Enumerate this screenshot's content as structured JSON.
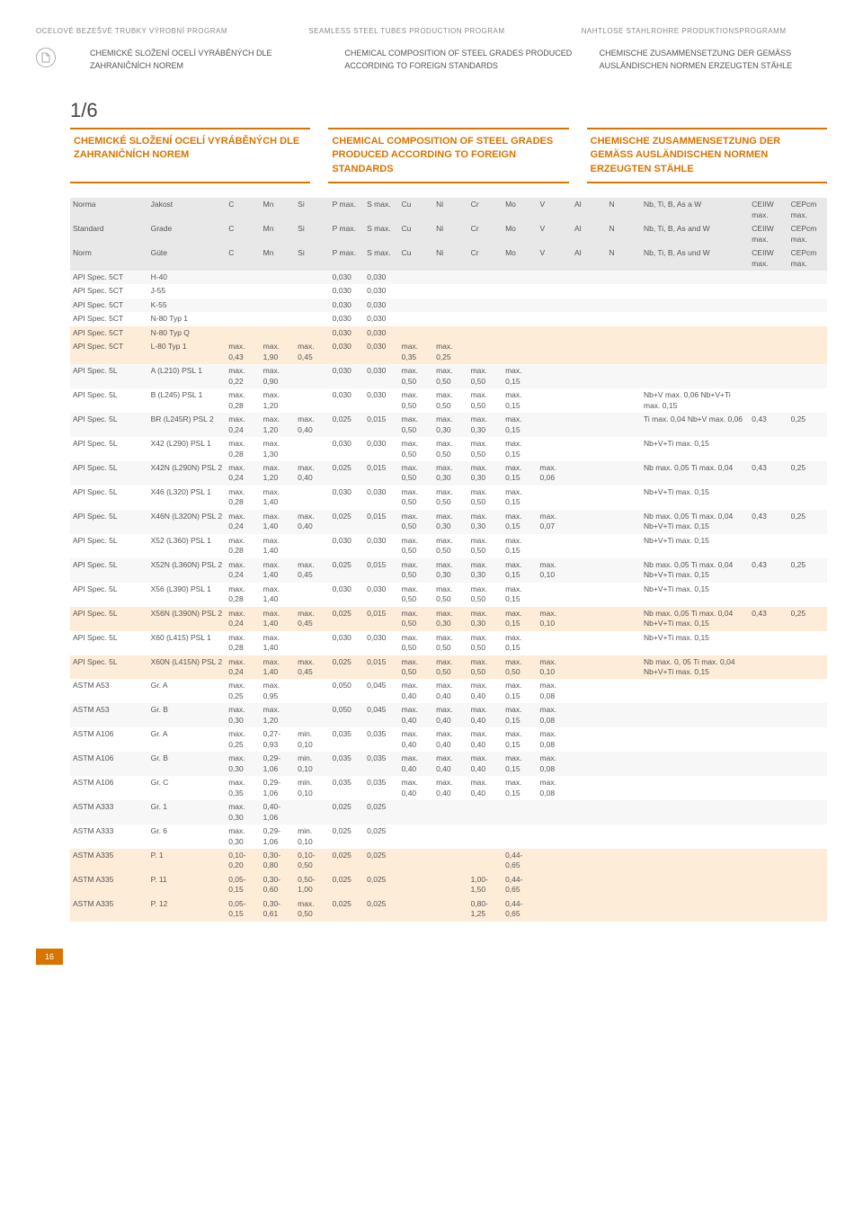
{
  "top_headers": {
    "cz": "OCELOVÉ BEZEŠVÉ TRUBKY VÝROBNÍ PROGRAM",
    "en": "SEAMLESS STEEL TUBES PRODUCTION PROGRAM",
    "de": "NAHTLOSE STAHLROHRE PRODUKTIONSPROGRAMM"
  },
  "sub_headers": {
    "cz": "CHEMICKÉ SLOŽENÍ OCELÍ VYRÁBĚNÝCH DLE ZAHRANIČNÍCH NOREM",
    "en": "CHEMICAL COMPOSITION OF STEEL GRADES PRODUCED ACCORDING TO FOREIGN STANDARDS",
    "de": "CHEMISCHE ZUSAMMENSETZUNG DER GEMÄSS AUSLÄNDISCHEN NORMEN ERZEUGTEN STÄHLE"
  },
  "page_indicator": "1/6",
  "titles": {
    "cz": "CHEMICKÉ SLOŽENÍ OCELÍ VYRÁBĚNÝCH DLE ZAHRANIČNÍCH NOREM",
    "en": "CHEMICAL COMPOSITION OF STEEL GRADES PRODUCED ACCORDING TO FOREIGN STANDARDS",
    "de": "CHEMISCHE ZUSAMMENSETZUNG DER GEMÄSS AUSLÄNDISCHEN NORMEN ERZEUGTEN STÄHLE"
  },
  "header_rows": [
    {
      "norma": "Norma",
      "jakost": "Jakost",
      "c": "C",
      "mn": "Mn",
      "si": "Si",
      "p": "P max.",
      "s": "S max.",
      "cu": "Cu",
      "ni": "Ni",
      "cr": "Cr",
      "mo": "Mo",
      "v": "V",
      "al": "Al",
      "n": "N",
      "nb": "Nb, Ti, B, As a W",
      "ceiiw": "CEIIW max.",
      "cepcm": "CEPcm max."
    },
    {
      "norma": "Standard",
      "jakost": "Grade",
      "c": "C",
      "mn": "Mn",
      "si": "Si",
      "p": "P max.",
      "s": "S max.",
      "cu": "Cu",
      "ni": "Ni",
      "cr": "Cr",
      "mo": "Mo",
      "v": "V",
      "al": "Al",
      "n": "N",
      "nb": "Nb, Ti, B, As and W",
      "ceiiw": "CEIIW max.",
      "cepcm": "CEPcm max."
    },
    {
      "norma": "Norm",
      "jakost": "Güte",
      "c": "C",
      "mn": "Mn",
      "si": "Si",
      "p": "P max.",
      "s": "S max.",
      "cu": "Cu",
      "ni": "Ni",
      "cr": "Cr",
      "mo": "Mo",
      "v": "V",
      "al": "Al",
      "n": "N",
      "nb": "Nb, Ti, B, As und W",
      "ceiiw": "CEIIW max.",
      "cepcm": "CEPcm max."
    }
  ],
  "rows": [
    {
      "cls": "r-odd",
      "norma": "API Spec. 5CT",
      "jakost": "H-40",
      "c": "",
      "mn": "",
      "si": "",
      "p": "0,030",
      "s": "0,030",
      "cu": "",
      "ni": "",
      "cr": "",
      "mo": "",
      "v": "",
      "al": "",
      "n": "",
      "nb": "",
      "ceiiw": "",
      "cepcm": ""
    },
    {
      "cls": "r-even",
      "norma": "API Spec. 5CT",
      "jakost": "J-55",
      "c": "",
      "mn": "",
      "si": "",
      "p": "0,030",
      "s": "0,030",
      "cu": "",
      "ni": "",
      "cr": "",
      "mo": "",
      "v": "",
      "al": "",
      "n": "",
      "nb": "",
      "ceiiw": "",
      "cepcm": ""
    },
    {
      "cls": "r-odd",
      "norma": "API Spec. 5CT",
      "jakost": "K-55",
      "c": "",
      "mn": "",
      "si": "",
      "p": "0,030",
      "s": "0,030",
      "cu": "",
      "ni": "",
      "cr": "",
      "mo": "",
      "v": "",
      "al": "",
      "n": "",
      "nb": "",
      "ceiiw": "",
      "cepcm": ""
    },
    {
      "cls": "r-even",
      "norma": "API Spec. 5CT",
      "jakost": "N-80 Typ 1",
      "c": "",
      "mn": "",
      "si": "",
      "p": "0,030",
      "s": "0,030",
      "cu": "",
      "ni": "",
      "cr": "",
      "mo": "",
      "v": "",
      "al": "",
      "n": "",
      "nb": "",
      "ceiiw": "",
      "cepcm": ""
    },
    {
      "cls": "r-hl",
      "norma": "API Spec. 5CT",
      "jakost": "N-80 Typ Q",
      "c": "",
      "mn": "",
      "si": "",
      "p": "0,030",
      "s": "0,030",
      "cu": "",
      "ni": "",
      "cr": "",
      "mo": "",
      "v": "",
      "al": "",
      "n": "",
      "nb": "",
      "ceiiw": "",
      "cepcm": ""
    },
    {
      "cls": "r-hl",
      "norma": "API Spec. 5CT",
      "jakost": "L-80 Typ 1",
      "c": "max. 0,43",
      "mn": "max. 1,90",
      "si": "max. 0,45",
      "p": "0,030",
      "s": "0,030",
      "cu": "max. 0,35",
      "ni": "max. 0,25",
      "cr": "",
      "mo": "",
      "v": "",
      "al": "",
      "n": "",
      "nb": "",
      "ceiiw": "",
      "cepcm": ""
    },
    {
      "cls": "r-odd",
      "norma": "API Spec. 5L",
      "jakost": "A (L210) PSL 1",
      "c": "max. 0,22",
      "mn": "max. 0,90",
      "si": "",
      "p": "0,030",
      "s": "0,030",
      "cu": "max. 0,50",
      "ni": "max. 0,50",
      "cr": "max. 0,50",
      "mo": "max. 0,15",
      "v": "",
      "al": "",
      "n": "",
      "nb": "",
      "ceiiw": "",
      "cepcm": ""
    },
    {
      "cls": "r-even",
      "norma": "API Spec. 5L",
      "jakost": "B (L245) PSL 1",
      "c": "max. 0,28",
      "mn": "max. 1,20",
      "si": "",
      "p": "0,030",
      "s": "0,030",
      "cu": "max. 0,50",
      "ni": "max. 0,50",
      "cr": "max. 0,50",
      "mo": "max. 0,15",
      "v": "",
      "al": "",
      "n": "",
      "nb": "Nb+V max. 0,06 Nb+V+Ti max. 0,15",
      "ceiiw": "",
      "cepcm": ""
    },
    {
      "cls": "r-odd",
      "norma": "API Spec. 5L",
      "jakost": "BR (L245R) PSL 2",
      "c": "max. 0,24",
      "mn": "max. 1,20",
      "si": "max. 0,40",
      "p": "0,025",
      "s": "0,015",
      "cu": "max. 0,50",
      "ni": "max. 0,30",
      "cr": "max. 0,30",
      "mo": "max. 0,15",
      "v": "",
      "al": "",
      "n": "",
      "nb": "Ti max. 0,04 Nb+V max. 0,06",
      "ceiiw": "0,43",
      "cepcm": "0,25"
    },
    {
      "cls": "r-even",
      "norma": "API Spec. 5L",
      "jakost": "X42 (L290) PSL 1",
      "c": "max. 0,28",
      "mn": "max. 1,30",
      "si": "",
      "p": "0,030",
      "s": "0,030",
      "cu": "max. 0,50",
      "ni": "max. 0,50",
      "cr": "max. 0,50",
      "mo": "max. 0,15",
      "v": "",
      "al": "",
      "n": "",
      "nb": "Nb+V+Ti max. 0,15",
      "ceiiw": "",
      "cepcm": ""
    },
    {
      "cls": "r-odd",
      "norma": "API Spec. 5L",
      "jakost": "X42N (L290N) PSL 2",
      "c": "max. 0,24",
      "mn": "max. 1,20",
      "si": "max. 0,40",
      "p": "0,025",
      "s": "0,015",
      "cu": "max. 0,50",
      "ni": "max. 0,30",
      "cr": "max. 0,30",
      "mo": "max. 0,15",
      "v": "max. 0,06",
      "al": "",
      "n": "",
      "nb": "Nb max. 0,05 Ti max. 0,04",
      "ceiiw": "0,43",
      "cepcm": "0,25"
    },
    {
      "cls": "r-even",
      "norma": "API Spec. 5L",
      "jakost": "X46 (L320) PSL 1",
      "c": "max. 0,28",
      "mn": "max. 1,40",
      "si": "",
      "p": "0,030",
      "s": "0,030",
      "cu": "max. 0,50",
      "ni": "max. 0,50",
      "cr": "max. 0,50",
      "mo": "max. 0,15",
      "v": "",
      "al": "",
      "n": "",
      "nb": "Nb+V+Ti max. 0,15",
      "ceiiw": "",
      "cepcm": ""
    },
    {
      "cls": "r-odd",
      "norma": "API Spec. 5L",
      "jakost": "X46N (L320N) PSL 2",
      "c": "max. 0,24",
      "mn": "max. 1,40",
      "si": "max. 0,40",
      "p": "0,025",
      "s": "0,015",
      "cu": "max. 0,50",
      "ni": "max. 0,30",
      "cr": "max. 0,30",
      "mo": "max. 0,15",
      "v": "max. 0,07",
      "al": "",
      "n": "",
      "nb": "Nb max. 0,05 Ti max. 0,04 Nb+V+Ti max. 0,15",
      "ceiiw": "0,43",
      "cepcm": "0,25"
    },
    {
      "cls": "r-even",
      "norma": "API Spec. 5L",
      "jakost": "X52 (L360) PSL 1",
      "c": "max. 0,28",
      "mn": "max. 1,40",
      "si": "",
      "p": "0,030",
      "s": "0,030",
      "cu": "max. 0,50",
      "ni": "max. 0,50",
      "cr": "max. 0,50",
      "mo": "max. 0,15",
      "v": "",
      "al": "",
      "n": "",
      "nb": "Nb+V+Ti max. 0,15",
      "ceiiw": "",
      "cepcm": ""
    },
    {
      "cls": "r-odd",
      "norma": "API Spec. 5L",
      "jakost": "X52N (L360N) PSL 2",
      "c": "max. 0,24",
      "mn": "max. 1,40",
      "si": "max. 0,45",
      "p": "0,025",
      "s": "0,015",
      "cu": "max. 0,50",
      "ni": "max. 0,30",
      "cr": "max. 0,30",
      "mo": "max. 0,15",
      "v": "max. 0,10",
      "al": "",
      "n": "",
      "nb": "Nb max. 0,05 Ti max. 0,04 Nb+V+Ti max. 0,15",
      "ceiiw": "0,43",
      "cepcm": "0,25"
    },
    {
      "cls": "r-even",
      "norma": "API Spec. 5L",
      "jakost": "X56 (L390) PSL 1",
      "c": "max. 0,28",
      "mn": "max. 1,40",
      "si": "",
      "p": "0,030",
      "s": "0,030",
      "cu": "max. 0,50",
      "ni": "max. 0,50",
      "cr": "max. 0,50",
      "mo": "max. 0,15",
      "v": "",
      "al": "",
      "n": "",
      "nb": "Nb+V+Ti max. 0,15",
      "ceiiw": "",
      "cepcm": ""
    },
    {
      "cls": "r-hl",
      "norma": "API Spec. 5L",
      "jakost": "X56N (L390N) PSL 2",
      "c": "max. 0,24",
      "mn": "max. 1,40",
      "si": "max. 0,45",
      "p": "0,025",
      "s": "0,015",
      "cu": "max. 0,50",
      "ni": "max. 0,30",
      "cr": "max. 0,30",
      "mo": "max. 0,15",
      "v": "max. 0,10",
      "al": "",
      "n": "",
      "nb": "Nb max. 0,05 Ti max. 0,04 Nb+V+Ti max. 0,15",
      "ceiiw": "0,43",
      "cepcm": "0,25"
    },
    {
      "cls": "r-even",
      "norma": "API Spec. 5L",
      "jakost": "X60 (L415) PSL 1",
      "c": "max. 0,28",
      "mn": "max. 1,40",
      "si": "",
      "p": "0,030",
      "s": "0,030",
      "cu": "max. 0,50",
      "ni": "max. 0,50",
      "cr": "max. 0,50",
      "mo": "max. 0,15",
      "v": "",
      "al": "",
      "n": "",
      "nb": "Nb+V+Ti max. 0,15",
      "ceiiw": "",
      "cepcm": ""
    },
    {
      "cls": "r-hl",
      "norma": "API Spec. 5L",
      "jakost": "X60N (L415N) PSL 2",
      "c": "max. 0,24",
      "mn": "max. 1,40",
      "si": "max. 0,45",
      "p": "0,025",
      "s": "0,015",
      "cu": "max. 0,50",
      "ni": "max. 0,50",
      "cr": "max. 0,50",
      "mo": "max. 0,50",
      "v": "max. 0,10",
      "al": "",
      "n": "",
      "nb": "Nb max. 0, 05 Ti max. 0,04 Nb+V+Ti max. 0,15",
      "ceiiw": "",
      "cepcm": ""
    },
    {
      "cls": "r-even",
      "norma": "ASTM A53",
      "jakost": "Gr. A",
      "c": "max. 0,25",
      "mn": "max. 0,95",
      "si": "",
      "p": "0,050",
      "s": "0,045",
      "cu": "max. 0,40",
      "ni": "max. 0,40",
      "cr": "max. 0,40",
      "mo": "max. 0,15",
      "v": "max. 0,08",
      "al": "",
      "n": "",
      "nb": "",
      "ceiiw": "",
      "cepcm": ""
    },
    {
      "cls": "r-odd",
      "norma": "ASTM A53",
      "jakost": "Gr. B",
      "c": "max. 0,30",
      "mn": "max. 1,20",
      "si": "",
      "p": "0,050",
      "s": "0,045",
      "cu": "max. 0,40",
      "ni": "max. 0,40",
      "cr": "max. 0,40",
      "mo": "max. 0,15",
      "v": "max. 0,08",
      "al": "",
      "n": "",
      "nb": "",
      "ceiiw": "",
      "cepcm": ""
    },
    {
      "cls": "r-even",
      "norma": "ASTM A106",
      "jakost": "Gr. A",
      "c": "max. 0,25",
      "mn": "0,27- 0,93",
      "si": "min. 0,10",
      "p": "0,035",
      "s": "0,035",
      "cu": "max. 0,40",
      "ni": "max. 0,40",
      "cr": "max. 0,40",
      "mo": "max. 0,15",
      "v": "max. 0,08",
      "al": "",
      "n": "",
      "nb": "",
      "ceiiw": "",
      "cepcm": ""
    },
    {
      "cls": "r-odd",
      "norma": "ASTM A106",
      "jakost": "Gr. B",
      "c": "max. 0,30",
      "mn": "0,29- 1,06",
      "si": "min. 0,10",
      "p": "0,035",
      "s": "0,035",
      "cu": "max. 0,40",
      "ni": "max. 0,40",
      "cr": "max. 0,40",
      "mo": "max. 0,15",
      "v": "max. 0,08",
      "al": "",
      "n": "",
      "nb": "",
      "ceiiw": "",
      "cepcm": ""
    },
    {
      "cls": "r-even",
      "norma": "ASTM A106",
      "jakost": "Gr. C",
      "c": "max. 0,35",
      "mn": "0,29- 1,06",
      "si": "min. 0,10",
      "p": "0,035",
      "s": "0,035",
      "cu": "max. 0,40",
      "ni": "max. 0,40",
      "cr": "max. 0,40",
      "mo": "max. 0,15",
      "v": "max. 0,08",
      "al": "",
      "n": "",
      "nb": "",
      "ceiiw": "",
      "cepcm": ""
    },
    {
      "cls": "r-odd",
      "norma": "ASTM A333",
      "jakost": "Gr. 1",
      "c": "max. 0,30",
      "mn": "0,40- 1,06",
      "si": "",
      "p": "0,025",
      "s": "0,025",
      "cu": "",
      "ni": "",
      "cr": "",
      "mo": "",
      "v": "",
      "al": "",
      "n": "",
      "nb": "",
      "ceiiw": "",
      "cepcm": ""
    },
    {
      "cls": "r-even",
      "norma": "ASTM A333",
      "jakost": "Gr. 6",
      "c": "max. 0,30",
      "mn": "0,29- 1,06",
      "si": "min. 0,10",
      "p": "0,025",
      "s": "0,025",
      "cu": "",
      "ni": "",
      "cr": "",
      "mo": "",
      "v": "",
      "al": "",
      "n": "",
      "nb": "",
      "ceiiw": "",
      "cepcm": ""
    },
    {
      "cls": "r-hl",
      "norma": "ASTM A335",
      "jakost": "P. 1",
      "c": "0,10- 0,20",
      "mn": "0,30- 0,80",
      "si": "0,10- 0,50",
      "p": "0,025",
      "s": "0,025",
      "cu": "",
      "ni": "",
      "cr": "",
      "mo": "0,44- 0,65",
      "v": "",
      "al": "",
      "n": "",
      "nb": "",
      "ceiiw": "",
      "cepcm": ""
    },
    {
      "cls": "r-hl",
      "norma": "ASTM A335",
      "jakost": "P. 11",
      "c": "0,05- 0,15",
      "mn": "0,30- 0,60",
      "si": "0,50- 1,00",
      "p": "0,025",
      "s": "0,025",
      "cu": "",
      "ni": "",
      "cr": "1,00- 1,50",
      "mo": "0,44- 0,65",
      "v": "",
      "al": "",
      "n": "",
      "nb": "",
      "ceiiw": "",
      "cepcm": ""
    },
    {
      "cls": "r-hl",
      "norma": "ASTM A335",
      "jakost": "P. 12",
      "c": "0,05- 0,15",
      "mn": "0,30- 0,61",
      "si": "max. 0,50",
      "p": "0,025",
      "s": "0,025",
      "cu": "",
      "ni": "",
      "cr": "0,80- 1,25",
      "mo": "0,44- 0,65",
      "v": "",
      "al": "",
      "n": "",
      "nb": "",
      "ceiiw": "",
      "cepcm": ""
    }
  ],
  "columns": [
    "norma",
    "jakost",
    "c",
    "mn",
    "si",
    "p",
    "s",
    "cu",
    "ni",
    "cr",
    "mo",
    "v",
    "al",
    "n",
    "nb",
    "ceiiw",
    "cepcm"
  ],
  "col_classes": [
    "norma-col",
    "jakost-col",
    "elem",
    "elem",
    "elem",
    "elem",
    "elem",
    "elem",
    "elem",
    "elem",
    "elem",
    "elem",
    "elem",
    "elem",
    "wide",
    "ceiiw",
    "cepcm"
  ],
  "footer_page": "16",
  "colors": {
    "accent": "#d97400",
    "header_bg": "#e8e8e8",
    "row_odd": "#f7f7f7",
    "row_even": "#ffffff",
    "row_hl": "#fdecd8",
    "text": "#555555"
  }
}
